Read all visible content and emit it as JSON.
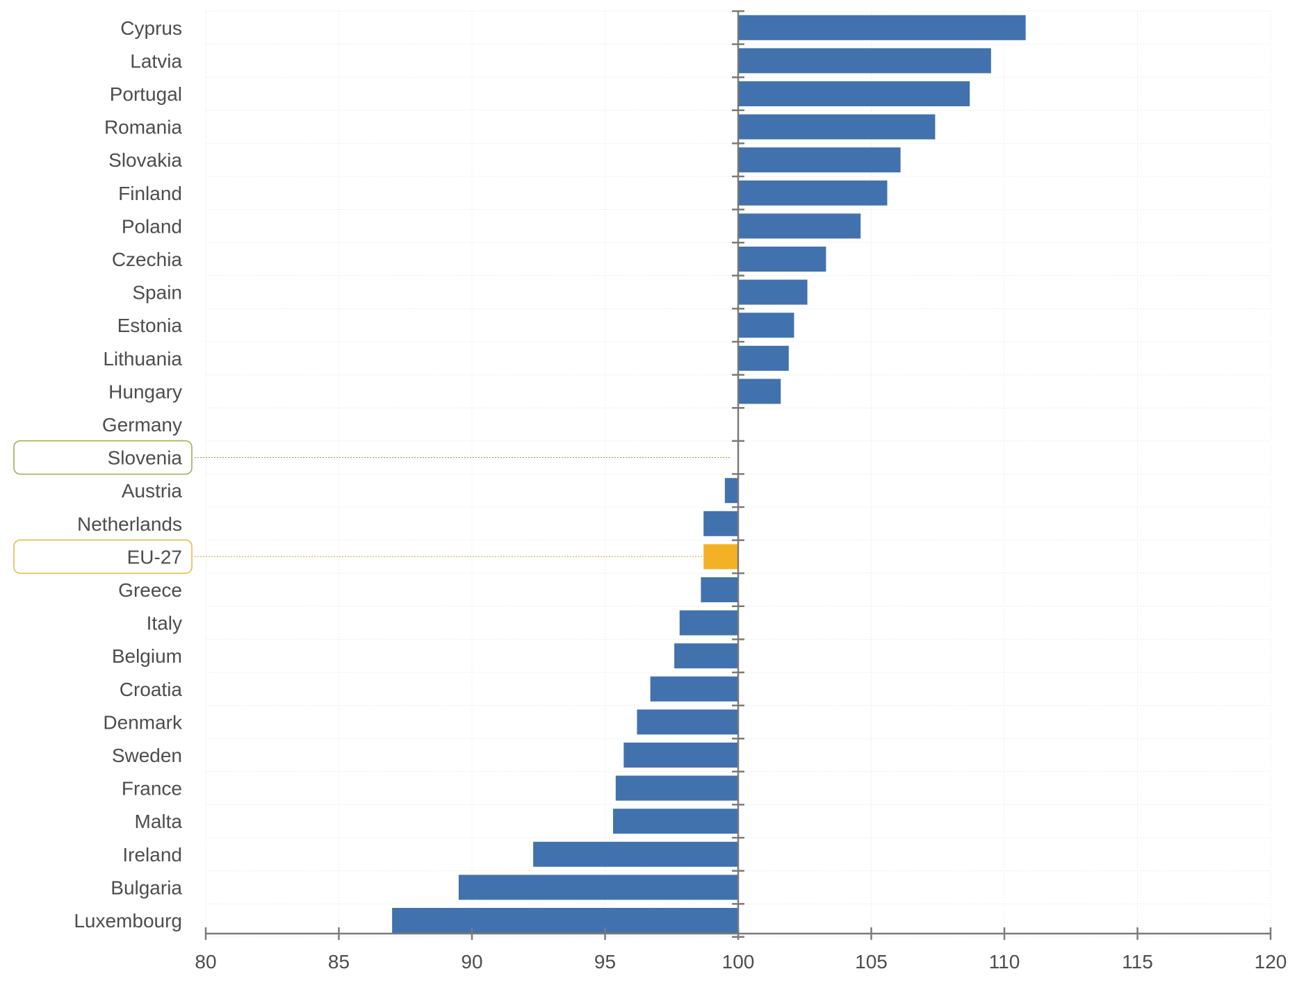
{
  "chart_data": {
    "type": "bar",
    "orientation": "horizontal",
    "title": "",
    "xlabel": "",
    "ylabel": "",
    "baseline": 100,
    "xlim": [
      80,
      120
    ],
    "xticks": [
      80,
      85,
      90,
      95,
      100,
      105,
      110,
      115,
      120
    ],
    "grid": true,
    "categories": [
      "Cyprus",
      "Latvia",
      "Portugal",
      "Romania",
      "Slovakia",
      "Finland",
      "Poland",
      "Czechia",
      "Spain",
      "Estonia",
      "Lithuania",
      "Hungary",
      "Germany",
      "Slovenia",
      "Austria",
      "Netherlands",
      "EU-27",
      "Greece",
      "Italy",
      "Belgium",
      "Croatia",
      "Denmark",
      "Sweden",
      "France",
      "Malta",
      "Ireland",
      "Bulgaria",
      "Luxembourg"
    ],
    "values": [
      110.8,
      109.5,
      108.7,
      107.4,
      106.1,
      105.6,
      104.6,
      103.3,
      102.6,
      102.1,
      101.9,
      101.6,
      100.0,
      100.0,
      99.5,
      98.7,
      98.7,
      98.6,
      97.8,
      97.6,
      96.7,
      96.2,
      95.7,
      95.4,
      95.3,
      92.3,
      89.5,
      87.0
    ],
    "highlighted": [
      "Slovenia",
      "EU-27"
    ],
    "colors": {
      "bar": "#4172ae",
      "eu_bar": "#f4b126",
      "slovenia_outline": "#9aab48",
      "eu_outline": "#e6b640",
      "axis": "#7a7a7a",
      "grid": "#ececec",
      "text": "#4d4d4d"
    }
  }
}
